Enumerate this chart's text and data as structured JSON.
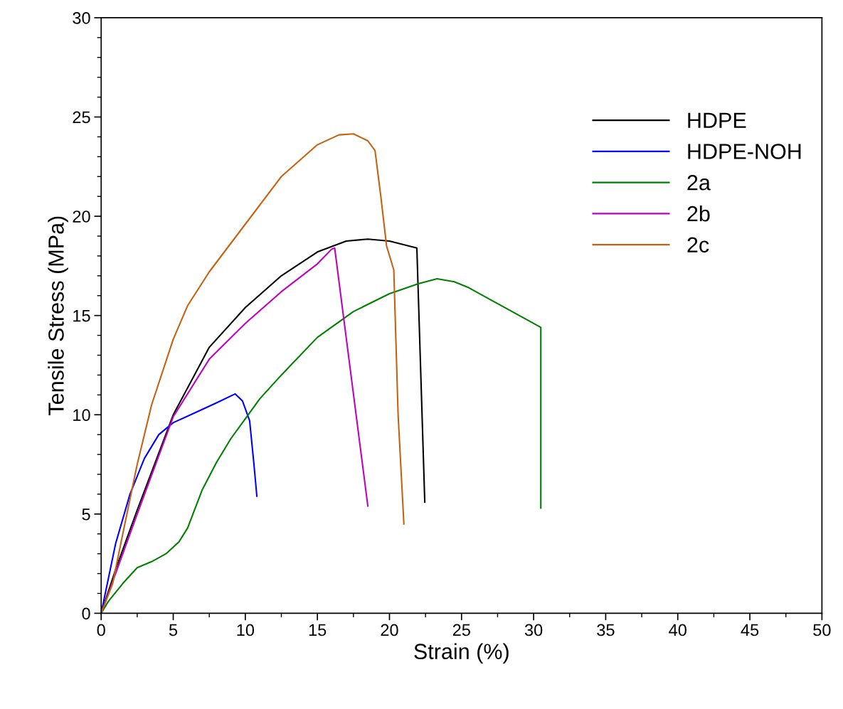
{
  "chart_data": {
    "type": "line",
    "xlabel": "Strain (%)",
    "ylabel": "Tensile Stress (MPa)",
    "xlim": [
      0,
      50
    ],
    "xticks": [
      0,
      5,
      10,
      15,
      20,
      25,
      30,
      35,
      40,
      45,
      50
    ],
    "ylim": [
      0,
      30
    ],
    "yticks": [
      0,
      5,
      10,
      15,
      20,
      25,
      30
    ],
    "grid": false,
    "legend": "right",
    "marker": "none",
    "line_style": "solid",
    "series": [
      {
        "name": "HDPE",
        "color": "#000000",
        "x": [
          0,
          1,
          2.5,
          5,
          7.5,
          10,
          12.5,
          15,
          17,
          18.5,
          20,
          21.9,
          22.45
        ],
        "values": [
          0,
          2.2,
          5.2,
          10,
          13.4,
          15.4,
          17.0,
          18.2,
          18.75,
          18.85,
          18.75,
          18.4,
          5.6
        ]
      },
      {
        "name": "HDPE-NOH",
        "color": "#0000ff",
        "x": [
          0,
          1,
          2,
          3,
          4,
          5,
          6.5,
          8,
          9.3,
          9.8,
          10.3,
          10.6,
          10.8
        ],
        "values": [
          0,
          3.5,
          6,
          7.8,
          9,
          9.6,
          10.1,
          10.6,
          11.05,
          10.7,
          9.7,
          7.5,
          5.9
        ]
      },
      {
        "name": "2a",
        "color": "#008000",
        "x": [
          0,
          0.5,
          1.5,
          2.5,
          3.5,
          4.5,
          5.4,
          6,
          7,
          8,
          9,
          10,
          11,
          12.5,
          15,
          17.5,
          20,
          22,
          23.3,
          24.5,
          25.5,
          27,
          29,
          30.5,
          30.5
        ],
        "values": [
          0,
          0.6,
          1.5,
          2.3,
          2.6,
          3.0,
          3.6,
          4.3,
          6.2,
          7.6,
          8.8,
          9.8,
          10.8,
          12.0,
          13.9,
          15.2,
          16.1,
          16.6,
          16.85,
          16.7,
          16.4,
          15.8,
          15.0,
          14.4,
          5.3
        ]
      },
      {
        "name": "2b",
        "color": "#bf00bf",
        "x": [
          0,
          1,
          2.5,
          5,
          7.5,
          10,
          12.5,
          15,
          16,
          16.2,
          18.5
        ],
        "values": [
          0,
          2,
          5,
          9.9,
          12.8,
          14.6,
          16.2,
          17.6,
          18.35,
          18.4,
          5.4
        ]
      },
      {
        "name": "2c",
        "color": "#c46210",
        "x": [
          0,
          0.8,
          1.5,
          2.5,
          3.5,
          5,
          6,
          7.5,
          10,
          12.5,
          15,
          16.5,
          17.5,
          18.5,
          19,
          19.4,
          19.8,
          20.3,
          20.6,
          21
        ],
        "values": [
          0,
          1.5,
          4,
          7.5,
          10.5,
          13.8,
          15.5,
          17.2,
          19.6,
          22,
          23.6,
          24.1,
          24.15,
          23.8,
          23.3,
          21,
          18.5,
          17.3,
          10,
          4.5
        ]
      }
    ]
  }
}
